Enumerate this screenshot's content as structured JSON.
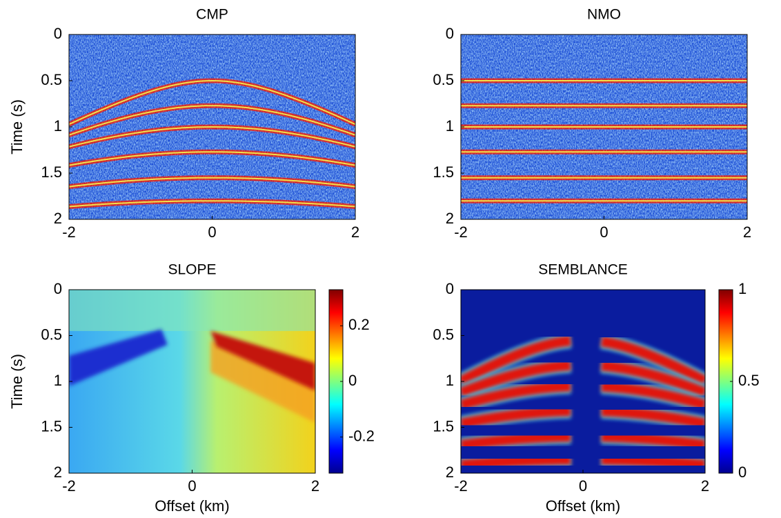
{
  "chart_data": [
    {
      "type": "heatmap",
      "title": "CMP",
      "ylabel": "Time (s)",
      "xlim": [
        -2,
        2
      ],
      "xticks": [
        -2,
        0,
        2
      ],
      "ylim": [
        0,
        2
      ],
      "yticks": [
        0,
        0.5,
        1,
        1.5,
        2
      ],
      "y_reversed": true,
      "colormap": "jet"
    },
    {
      "type": "heatmap",
      "title": "NMO",
      "xlim": [
        -2,
        2
      ],
      "xticks": [
        -2,
        0,
        2
      ],
      "ylim": [
        0,
        2
      ],
      "yticks": [
        0,
        0.5,
        1,
        1.5,
        2
      ],
      "y_reversed": true,
      "colormap": "jet"
    },
    {
      "type": "heatmap",
      "title": "SLOPE",
      "xlabel": "Offset (km)",
      "ylabel": "Time (s)",
      "xlim": [
        -2,
        2
      ],
      "xticks": [
        -2,
        0,
        2
      ],
      "ylim": [
        0,
        2
      ],
      "yticks": [
        0,
        0.5,
        1,
        1.5,
        2
      ],
      "y_reversed": true,
      "colormap": "jet",
      "colorbar": {
        "clim": [
          -0.33,
          0.33
        ],
        "ticks": [
          -0.2,
          0,
          0.2
        ]
      }
    },
    {
      "type": "heatmap",
      "title": "SEMBLANCE",
      "xlabel": "Offset (km)",
      "xlim": [
        -2,
        2
      ],
      "xticks": [
        -2,
        0,
        2
      ],
      "ylim": [
        0,
        2
      ],
      "yticks": [
        0,
        0.5,
        1,
        1.5,
        2
      ],
      "y_reversed": true,
      "colormap": "jet",
      "colorbar": {
        "clim": [
          0,
          1
        ],
        "ticks": [
          0,
          0.5,
          1
        ]
      }
    }
  ]
}
